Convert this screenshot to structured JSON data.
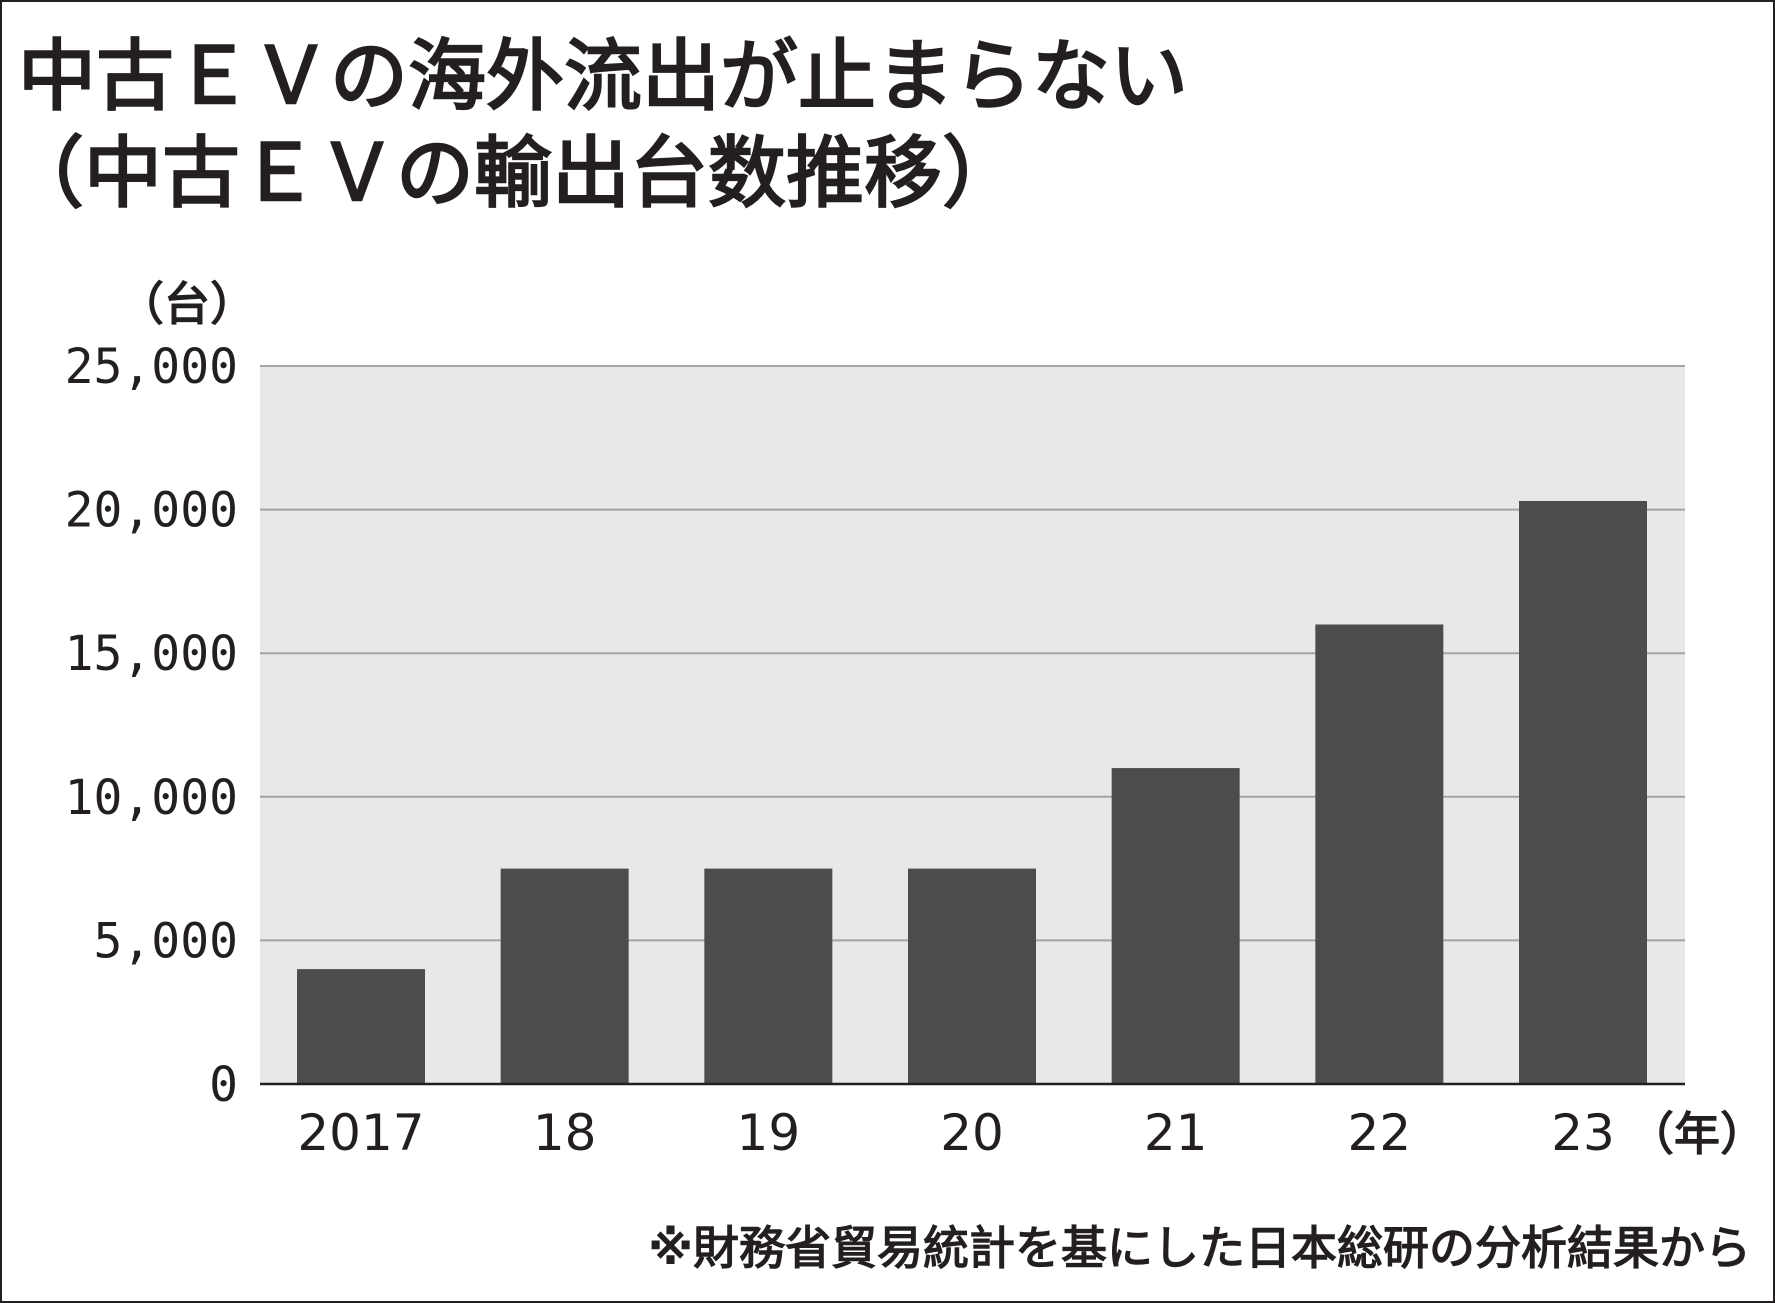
{
  "header": {
    "title_line1": "中古ＥＶの海外流出が止まらない",
    "title_line2": "（中古ＥＶの輸出台数推移）"
  },
  "footer": {
    "source": "※財務省貿易統計を基にした日本総研の分析結果から"
  },
  "colors": {
    "bar": "#4d4b4e",
    "plot_background": "#e8e8ea",
    "gridline": "#a3a3a6",
    "text": "#231f20"
  },
  "chart_data": {
    "type": "bar",
    "title": "中古ＥＶの海外流出が止まらない",
    "subtitle": "（中古ＥＶの輸出台数推移）",
    "ylabel": "（台）",
    "xlabel": "（年）",
    "categories": [
      "2017",
      "18",
      "19",
      "20",
      "21",
      "22",
      "23"
    ],
    "values": [
      4000,
      7500,
      7500,
      7500,
      11000,
      16000,
      20300
    ],
    "ylim": [
      0,
      25000
    ],
    "yticks": [
      0,
      5000,
      10000,
      15000,
      20000,
      25000
    ],
    "ytick_labels": [
      "0",
      "5,000",
      "10,000",
      "15,000",
      "20,000",
      "25,000"
    ],
    "grid": true,
    "legend": "none"
  }
}
